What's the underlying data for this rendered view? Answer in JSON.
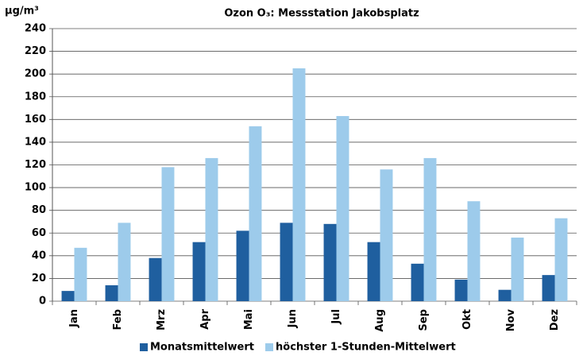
{
  "chart_data": {
    "type": "bar",
    "title": "Ozon O₃: Messstation Jakobsplatz",
    "y_label": "µg/m³",
    "categories": [
      "Jan",
      "Feb",
      "Mrz",
      "Apr",
      "Mai",
      "Jun",
      "Jul",
      "Aug",
      "Sep",
      "Okt",
      "Nov",
      "Dez"
    ],
    "series": [
      {
        "name": "Monatsmittelwert",
        "color": "#1f5f9f",
        "values": [
          9,
          14,
          38,
          52,
          62,
          69,
          68,
          52,
          33,
          19,
          10,
          23
        ]
      },
      {
        "name": "höchster 1-Stunden-Mittelwert",
        "color": "#9dcbeb",
        "values": [
          47,
          69,
          118,
          126,
          154,
          205,
          163,
          116,
          126,
          88,
          56,
          73
        ]
      }
    ],
    "ylim": [
      0,
      240
    ],
    "yticks": [
      0,
      20,
      40,
      60,
      80,
      100,
      120,
      140,
      160,
      180,
      200,
      220,
      240
    ],
    "grid": true,
    "legend": "bottom"
  }
}
